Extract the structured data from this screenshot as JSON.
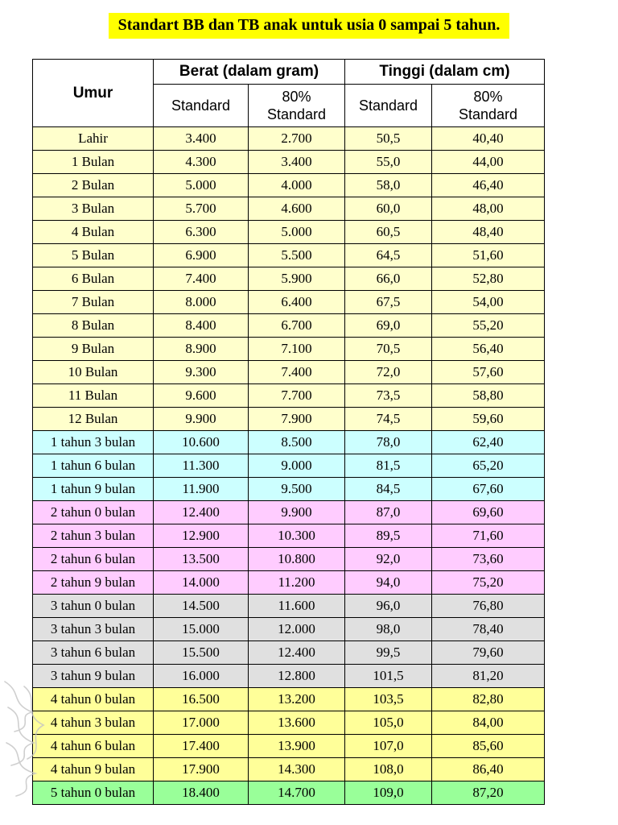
{
  "page": {
    "title": "Standart BB dan TB anak untuk usia 0 sampai 5 tahun.",
    "highlight_color": "#ffff00"
  },
  "table": {
    "columns": {
      "umur": "Umur",
      "berat_group": "Berat (dalam gram)",
      "tinggi_group": "Tinggi (dalam cm)",
      "standard": "Standard",
      "standard80": "80% Standard"
    },
    "sections": [
      {
        "name": "usia-0-12-bulan",
        "color": "#FFFFCC",
        "rows": [
          [
            "Lahir",
            "3.400",
            "2.700",
            "50,5",
            "40,40"
          ],
          [
            "1 Bulan",
            "4.300",
            "3.400",
            "55,0",
            "44,00"
          ],
          [
            "2 Bulan",
            "5.000",
            "4.000",
            "58,0",
            "46,40"
          ],
          [
            "3 Bulan",
            "5.700",
            "4.600",
            "60,0",
            "48,00"
          ],
          [
            "4 Bulan",
            "6.300",
            "5.000",
            "60,5",
            "48,40"
          ],
          [
            "5 Bulan",
            "6.900",
            "5.500",
            "64,5",
            "51,60"
          ],
          [
            "6 Bulan",
            "7.400",
            "5.900",
            "66,0",
            "52,80"
          ],
          [
            "7 Bulan",
            "8.000",
            "6.400",
            "67,5",
            "54,00"
          ],
          [
            "8 Bulan",
            "8.400",
            "6.700",
            "69,0",
            "55,20"
          ],
          [
            "9 Bulan",
            "8.900",
            "7.100",
            "70,5",
            "56,40"
          ],
          [
            "10 Bulan",
            "9.300",
            "7.400",
            "72,0",
            "57,60"
          ],
          [
            "11 Bulan",
            "9.600",
            "7.700",
            "73,5",
            "58,80"
          ],
          [
            "12 Bulan",
            "9.900",
            "7.900",
            "74,5",
            "59,60"
          ]
        ]
      },
      {
        "name": "usia-1-tahun",
        "color": "#CCFFFF",
        "rows": [
          [
            "1 tahun 3 bulan",
            "10.600",
            "8.500",
            "78,0",
            "62,40"
          ],
          [
            "1 tahun 6 bulan",
            "11.300",
            "9.000",
            "81,5",
            "65,20"
          ],
          [
            "1 tahun 9 bulan",
            "11.900",
            "9.500",
            "84,5",
            "67,60"
          ]
        ]
      },
      {
        "name": "usia-2-tahun",
        "color": "#FFCCFF",
        "rows": [
          [
            "2 tahun 0 bulan",
            "12.400",
            "9.900",
            "87,0",
            "69,60"
          ],
          [
            "2 tahun 3 bulan",
            "12.900",
            "10.300",
            "89,5",
            "71,60"
          ],
          [
            "2 tahun 6 bulan",
            "13.500",
            "10.800",
            "92,0",
            "73,60"
          ],
          [
            "2 tahun 9 bulan",
            "14.000",
            "11.200",
            "94,0",
            "75,20"
          ]
        ]
      },
      {
        "name": "usia-3-tahun",
        "color": "#E0E0E0",
        "rows": [
          [
            "3 tahun 0 bulan",
            "14.500",
            "11.600",
            "96,0",
            "76,80"
          ],
          [
            "3 tahun 3 bulan",
            "15.000",
            "12.000",
            "98,0",
            "78,40"
          ],
          [
            "3 tahun 6 bulan",
            "15.500",
            "12.400",
            "99,5",
            "79,60"
          ],
          [
            "3 tahun 9 bulan",
            "16.000",
            "12.800",
            "101,5",
            "81,20"
          ]
        ]
      },
      {
        "name": "usia-4-tahun",
        "color": "#FFFF99",
        "rows": [
          [
            "4 tahun 0 bulan",
            "16.500",
            "13.200",
            "103,5",
            "82,80"
          ],
          [
            "4 tahun 3 bulan",
            "17.000",
            "13.600",
            "105,0",
            "84,00"
          ],
          [
            "4 tahun 6 bulan",
            "17.400",
            "13.900",
            "107,0",
            "85,60"
          ],
          [
            "4 tahun 9 bulan",
            "17.900",
            "14.300",
            "108,0",
            "86,40"
          ]
        ]
      },
      {
        "name": "usia-5-tahun",
        "color": "#99FF99",
        "rows": [
          [
            "5 tahun 0 bulan",
            "18.400",
            "14.700",
            "109,0",
            "87,20"
          ]
        ]
      }
    ]
  }
}
